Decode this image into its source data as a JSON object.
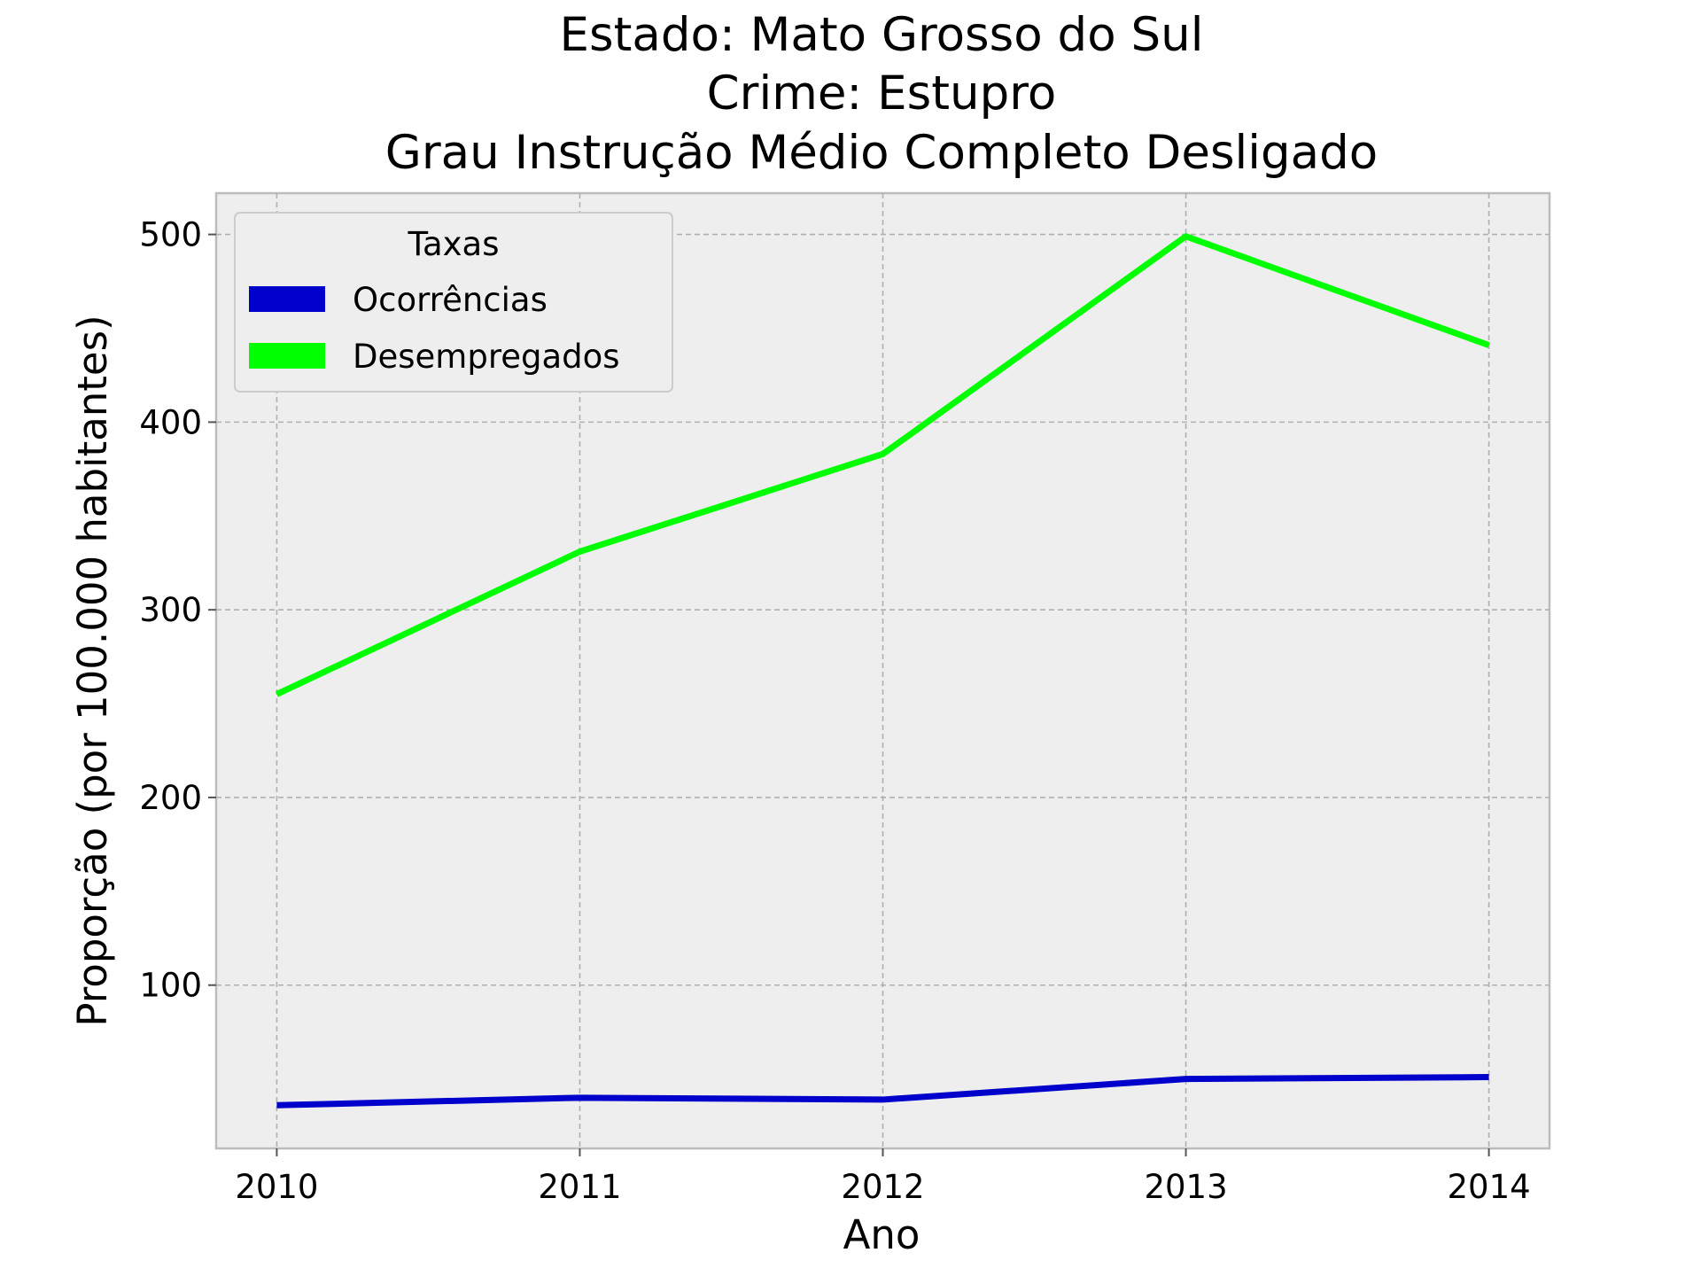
{
  "chart_data": {
    "type": "line",
    "title": [
      "Estado: Mato Grosso do Sul",
      "Crime: Estupro",
      "Grau Instrução  Médio Completo   Desligado"
    ],
    "xlabel": "Ano",
    "ylabel": "Proporção (por 100.000 habitantes)",
    "x": [
      "2010",
      "2011",
      "2012",
      "2013",
      "2014"
    ],
    "xlim": [
      2009.8,
      2014.2
    ],
    "ylim": [
      13,
      522
    ],
    "yticks": [
      100,
      200,
      300,
      400,
      500
    ],
    "grid": true,
    "legend": {
      "title": "Taxas",
      "placement": "top-left"
    },
    "series": [
      {
        "name": "Ocorrências",
        "color": "#0000cc",
        "values": [
          36,
          40,
          39,
          50,
          51
        ]
      },
      {
        "name": "Desempregados",
        "color": "#00ff00",
        "values": [
          255,
          331,
          383,
          499,
          441
        ]
      }
    ]
  }
}
